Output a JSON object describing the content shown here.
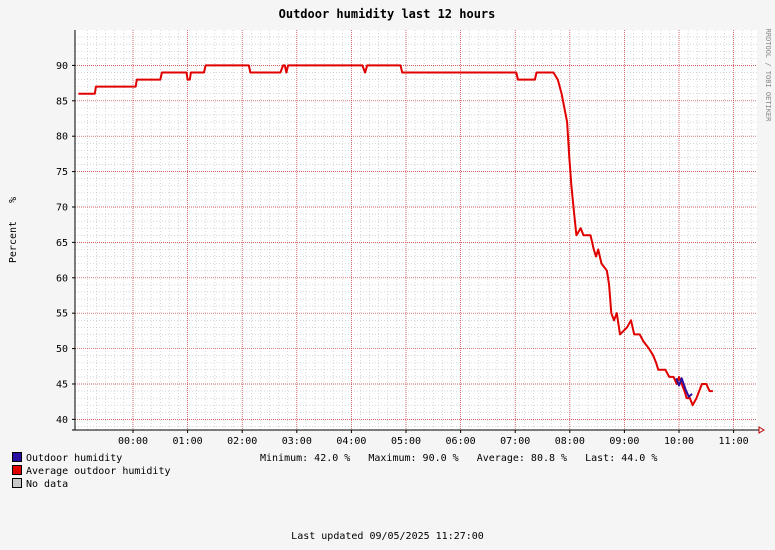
{
  "chart_data": {
    "type": "line",
    "title": "Outdoor humidity last 12 hours",
    "ylabel": "Percent   %",
    "watermark": "RRDTOOL / TOBI OETIKER",
    "ylim": [
      38.5,
      95
    ],
    "yticks": [
      40,
      45,
      50,
      55,
      60,
      65,
      70,
      75,
      80,
      85,
      90
    ],
    "xticks": [
      "00:00",
      "01:00",
      "02:00",
      "03:00",
      "04:00",
      "05:00",
      "06:00",
      "07:00",
      "08:00",
      "09:00",
      "10:00",
      "11:00"
    ],
    "grid": true,
    "series": [
      {
        "name": "Average outdoor humidity",
        "color": "#e00000",
        "points": [
          [
            -1.0,
            86
          ],
          [
            -0.7,
            86
          ],
          [
            -0.68,
            87
          ],
          [
            0.05,
            87
          ],
          [
            0.07,
            88
          ],
          [
            0.5,
            88
          ],
          [
            0.53,
            89
          ],
          [
            0.98,
            89
          ],
          [
            1.0,
            88
          ],
          [
            1.04,
            88
          ],
          [
            1.06,
            89
          ],
          [
            1.3,
            89
          ],
          [
            1.33,
            90
          ],
          [
            2.12,
            90
          ],
          [
            2.15,
            89
          ],
          [
            2.7,
            89
          ],
          [
            2.75,
            90
          ],
          [
            2.78,
            90
          ],
          [
            2.81,
            89
          ],
          [
            2.84,
            90
          ],
          [
            4.2,
            90
          ],
          [
            4.25,
            89
          ],
          [
            4.29,
            90
          ],
          [
            4.9,
            90
          ],
          [
            4.93,
            89
          ],
          [
            7.02,
            89
          ],
          [
            7.05,
            88
          ],
          [
            7.36,
            88
          ],
          [
            7.39,
            89
          ],
          [
            7.7,
            89
          ],
          [
            7.78,
            88
          ],
          [
            7.85,
            86
          ],
          [
            7.95,
            82
          ],
          [
            7.99,
            77
          ],
          [
            8.03,
            73
          ],
          [
            8.08,
            69
          ],
          [
            8.12,
            66
          ],
          [
            8.2,
            67
          ],
          [
            8.25,
            66
          ],
          [
            8.38,
            66
          ],
          [
            8.44,
            64
          ],
          [
            8.48,
            63
          ],
          [
            8.52,
            64
          ],
          [
            8.58,
            62
          ],
          [
            8.68,
            61
          ],
          [
            8.72,
            59
          ],
          [
            8.76,
            55
          ],
          [
            8.81,
            54
          ],
          [
            8.86,
            55
          ],
          [
            8.92,
            52
          ],
          [
            9.05,
            53
          ],
          [
            9.12,
            54
          ],
          [
            9.18,
            52
          ],
          [
            9.28,
            52
          ],
          [
            9.35,
            51
          ],
          [
            9.45,
            50
          ],
          [
            9.53,
            49
          ],
          [
            9.58,
            48
          ],
          [
            9.62,
            47
          ],
          [
            9.75,
            47
          ],
          [
            9.82,
            46
          ],
          [
            9.9,
            46
          ],
          [
            9.96,
            45
          ],
          [
            10.0,
            46
          ],
          [
            10.05,
            45
          ],
          [
            10.1,
            44
          ],
          [
            10.14,
            43
          ],
          [
            10.2,
            43
          ],
          [
            10.25,
            42
          ],
          [
            10.32,
            43
          ],
          [
            10.42,
            45
          ],
          [
            10.5,
            45
          ],
          [
            10.56,
            44
          ],
          [
            10.62,
            44
          ]
        ]
      },
      {
        "name": "Outdoor humidity",
        "color": "#2a0ea0",
        "points": [
          [
            9.95,
            45.8
          ],
          [
            10.0,
            44.8
          ],
          [
            10.05,
            45.8
          ],
          [
            10.12,
            44.2
          ],
          [
            10.18,
            43.2
          ],
          [
            10.24,
            43.6
          ]
        ]
      }
    ],
    "minimum": 42.0,
    "maximum": 90.0,
    "average": 80.8,
    "last": 44.0
  },
  "legend": [
    {
      "label": "Outdoor humidity",
      "color": "#2a0ea0"
    },
    {
      "label": "Average outdoor humidity",
      "color": "#e00000"
    },
    {
      "label": "No data",
      "color": "#c8c8c8"
    }
  ],
  "stats_text": "Minimum: 42.0 %   Maximum: 90.0 %   Average: 80.8 %   Last: 44.0 %",
  "updated_text": "Last updated 09/05/2025 11:27:00"
}
